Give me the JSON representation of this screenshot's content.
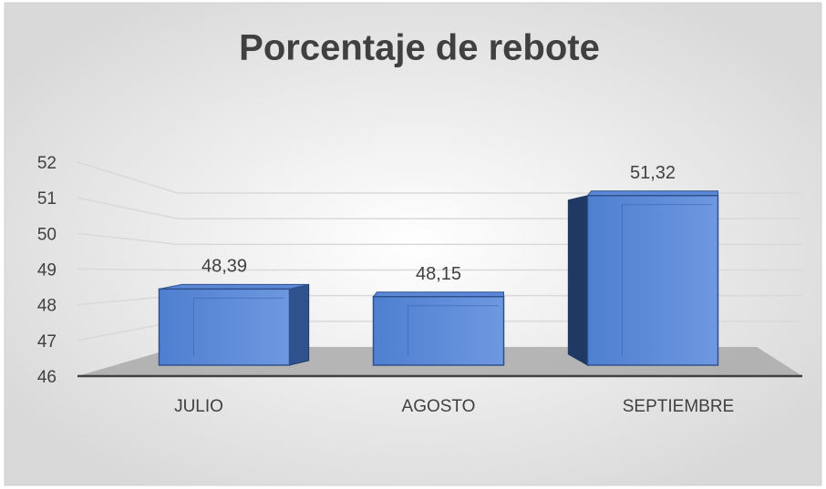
{
  "chart_data": {
    "type": "bar3d",
    "title": "Porcentaje de rebote",
    "categories": [
      "JULIO",
      "AGOSTO",
      "SEPTIEMBRE"
    ],
    "values": [
      48.39,
      48.15,
      51.32
    ],
    "value_labels": [
      "48,39",
      "48,15",
      "51,32"
    ],
    "color": "#4472c4",
    "ylim": [
      46,
      52
    ],
    "yticks": [
      46,
      47,
      48,
      49,
      50,
      51,
      52
    ],
    "grid": true
  }
}
